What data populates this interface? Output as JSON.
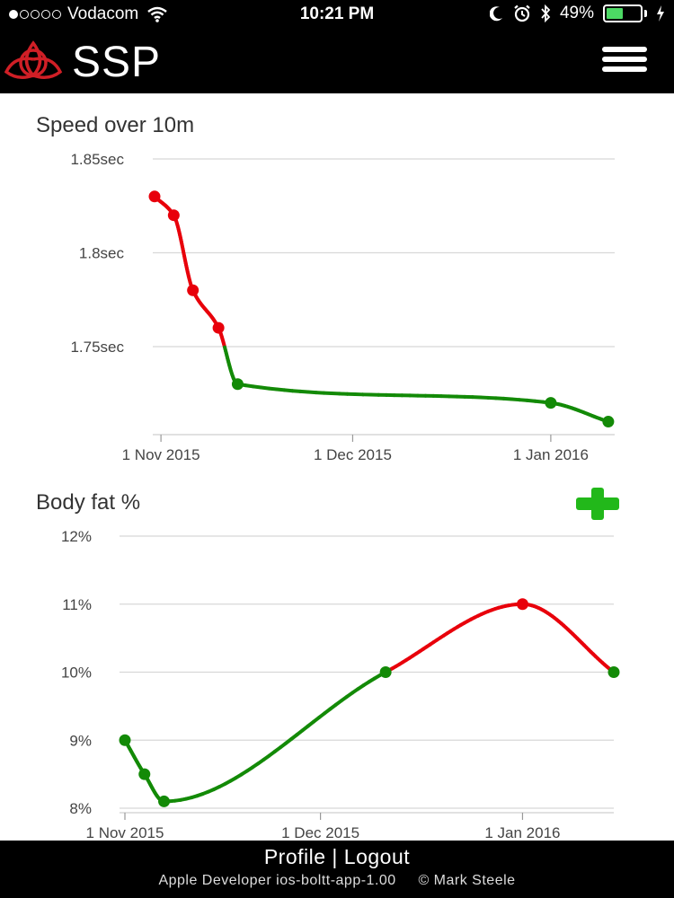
{
  "status_bar": {
    "carrier": "Vodacom",
    "time": "10:21 PM",
    "battery_percent": "49%",
    "battery_level": 0.49,
    "signal_bars_filled": 1,
    "signal_bars_total": 5,
    "icons": [
      "wifi-icon",
      "moon-icon",
      "alarm-icon",
      "bluetooth-icon",
      "battery-icon",
      "charging-icon"
    ]
  },
  "header": {
    "brand": "SSP",
    "logo": "triquetra-logo",
    "menu_icon": "hamburger-menu-icon"
  },
  "colors": {
    "bad": "#e8000b",
    "good": "#138a07",
    "header_bg": "#000000",
    "add_button": "#22b81a",
    "logo_red": "#d01f26"
  },
  "speed_chart": {
    "title": "Speed over 10m",
    "chart_data": {
      "type": "line",
      "title": "Speed over 10m",
      "y_unit": "sec",
      "y_ticks": [
        "1.85sec",
        "1.8sec",
        "1.75sec"
      ],
      "ylim": [
        1.705,
        1.85
      ],
      "x_ticks": [
        "1 Nov 2015",
        "1 Dec 2015",
        "1 Jan 2016"
      ],
      "xlim": [
        "2015-10-31",
        "2016-01-11"
      ],
      "grid": true,
      "points": [
        {
          "x": "2015-10-31",
          "y": 1.83
        },
        {
          "x": "2015-11-03",
          "y": 1.82
        },
        {
          "x": "2015-11-06",
          "y": 1.78
        },
        {
          "x": "2015-11-10",
          "y": 1.76
        },
        {
          "x": "2015-11-13",
          "y": 1.73
        },
        {
          "x": "2016-01-01",
          "y": 1.72
        },
        {
          "x": "2016-01-10",
          "y": 1.71
        }
      ],
      "color_rule": "red while worsening above 1.75sec, green below"
    }
  },
  "bodyfat_chart": {
    "title": "Body fat %",
    "add_icon": "plus-icon",
    "chart_data": {
      "type": "line",
      "title": "Body fat %",
      "y_unit": "%",
      "y_ticks": [
        "12%",
        "11%",
        "10%",
        "9%",
        "8%"
      ],
      "ylim": [
        8,
        12
      ],
      "x_ticks": [
        "1 Nov 2015",
        "1 Dec 2015",
        "1 Jan 2016"
      ],
      "xlim": [
        "2015-11-01",
        "2016-01-15"
      ],
      "grid": true,
      "points": [
        {
          "x": "2015-11-01",
          "y": 9.0
        },
        {
          "x": "2015-11-04",
          "y": 8.5
        },
        {
          "x": "2015-11-07",
          "y": 8.1
        },
        {
          "x": "2015-12-11",
          "y": 10.0
        },
        {
          "x": "2016-01-01",
          "y": 11.0
        },
        {
          "x": "2016-01-15",
          "y": 10.0
        }
      ],
      "color_rule": "green below 10%, red above"
    }
  },
  "footer": {
    "profile_label": "Profile",
    "separator": "|",
    "logout_label": "Logout",
    "meta": "Apple Developer ios-boltt-app-1.00",
    "copyright": "© Mark Steele"
  }
}
